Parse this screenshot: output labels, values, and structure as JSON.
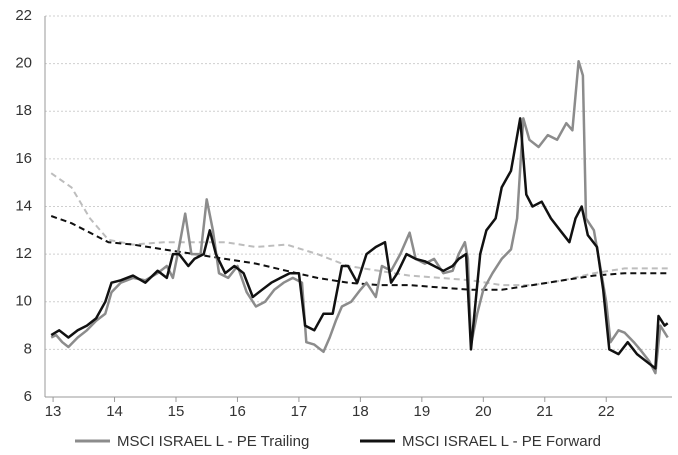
{
  "chart_data": {
    "type": "line",
    "xlim": [
      12.95,
      23.07
    ],
    "xticks": [
      13,
      14,
      15,
      16,
      17,
      18,
      19,
      20,
      21,
      22
    ],
    "ylim": [
      6,
      22
    ],
    "yticks": [
      6,
      8,
      10,
      12,
      14,
      16,
      18,
      20,
      22
    ],
    "grid": true,
    "series": [
      {
        "name": "MSCI ISRAEL L - PE Trailing",
        "color": "#8c8c8c",
        "dash": false,
        "x": [
          12.97,
          13.05,
          13.15,
          13.25,
          13.4,
          13.55,
          13.7,
          13.85,
          13.95,
          14.1,
          14.3,
          14.5,
          14.7,
          14.85,
          14.95,
          15.05,
          15.15,
          15.25,
          15.4,
          15.5,
          15.6,
          15.7,
          15.85,
          16.0,
          16.15,
          16.3,
          16.45,
          16.6,
          16.75,
          16.9,
          17.05,
          17.12,
          17.25,
          17.4,
          17.5,
          17.6,
          17.7,
          17.85,
          18.0,
          18.1,
          18.25,
          18.35,
          18.5,
          18.65,
          18.8,
          18.9,
          19.05,
          19.2,
          19.35,
          19.5,
          19.6,
          19.7,
          19.75,
          19.8,
          19.9,
          20.0,
          20.15,
          20.3,
          20.45,
          20.55,
          20.65,
          20.75,
          20.9,
          21.05,
          21.2,
          21.35,
          21.45,
          21.55,
          21.62,
          21.67,
          21.8,
          21.9,
          22.0,
          22.07,
          22.2,
          22.3,
          22.45,
          22.55,
          22.7,
          22.8,
          22.88,
          23.0
        ],
        "values": [
          8.5,
          8.6,
          8.3,
          8.1,
          8.5,
          8.8,
          9.2,
          9.5,
          10.4,
          10.8,
          11.0,
          10.9,
          11.2,
          11.5,
          11.0,
          12.3,
          13.7,
          12.0,
          12.0,
          14.3,
          13.0,
          11.2,
          11.0,
          11.5,
          10.4,
          9.8,
          10.0,
          10.5,
          10.8,
          11.0,
          10.8,
          8.3,
          8.2,
          7.9,
          8.5,
          9.2,
          9.8,
          10.0,
          10.5,
          10.8,
          10.2,
          11.5,
          11.3,
          12.0,
          12.9,
          11.8,
          11.6,
          11.8,
          11.2,
          11.3,
          12.0,
          12.5,
          11.8,
          8.2,
          9.5,
          10.5,
          11.2,
          11.8,
          12.2,
          13.5,
          17.7,
          16.8,
          16.5,
          17.0,
          16.8,
          17.5,
          17.2,
          20.1,
          19.5,
          13.5,
          13.0,
          11.5,
          10.0,
          8.3,
          8.8,
          8.7,
          8.3,
          8.0,
          7.5,
          7.0,
          9.0,
          8.5
        ]
      },
      {
        "name": "MSCI ISRAEL L - PE Forward",
        "color": "#111111",
        "dash": false,
        "x": [
          12.97,
          13.1,
          13.25,
          13.4,
          13.55,
          13.7,
          13.85,
          13.95,
          14.1,
          14.3,
          14.5,
          14.7,
          14.85,
          14.95,
          15.05,
          15.2,
          15.3,
          15.45,
          15.55,
          15.65,
          15.8,
          15.95,
          16.1,
          16.25,
          16.4,
          16.55,
          16.7,
          16.85,
          17.0,
          17.1,
          17.25,
          17.4,
          17.55,
          17.7,
          17.8,
          17.95,
          18.1,
          18.25,
          18.4,
          18.5,
          18.6,
          18.75,
          18.9,
          19.05,
          19.2,
          19.35,
          19.5,
          19.6,
          19.72,
          19.8,
          19.95,
          20.05,
          20.2,
          20.3,
          20.45,
          20.6,
          20.7,
          20.8,
          20.95,
          21.1,
          21.25,
          21.4,
          21.5,
          21.6,
          21.7,
          21.85,
          21.95,
          22.05,
          22.2,
          22.35,
          22.5,
          22.65,
          22.8,
          22.85,
          22.95,
          23.0
        ],
        "values": [
          8.6,
          8.8,
          8.5,
          8.8,
          9.0,
          9.3,
          10.0,
          10.8,
          10.9,
          11.1,
          10.8,
          11.3,
          11.0,
          12.0,
          12.0,
          11.5,
          11.8,
          12.0,
          13.0,
          12.0,
          11.2,
          11.5,
          11.2,
          10.2,
          10.5,
          10.8,
          11.0,
          11.2,
          11.2,
          9.0,
          8.8,
          9.5,
          9.5,
          11.5,
          11.5,
          10.8,
          12.0,
          12.3,
          12.5,
          10.8,
          11.2,
          12.0,
          11.8,
          11.7,
          11.5,
          11.3,
          11.5,
          11.8,
          12.0,
          8.0,
          12.0,
          13.0,
          13.5,
          14.8,
          15.5,
          17.7,
          14.5,
          14.0,
          14.2,
          13.5,
          13.0,
          12.5,
          13.5,
          14.0,
          12.8,
          12.3,
          10.5,
          8.0,
          7.8,
          8.3,
          7.8,
          7.5,
          7.2,
          9.4,
          9.0,
          9.1
        ]
      },
      {
        "color": "#bdbdbd",
        "dash": true,
        "x": [
          12.97,
          13.3,
          13.6,
          13.9,
          14.3,
          14.8,
          15.3,
          15.8,
          16.3,
          16.8,
          17.3,
          17.8,
          18.3,
          18.8,
          19.3,
          19.8,
          20.3,
          20.8,
          21.3,
          21.8,
          22.3,
          22.8,
          23.0
        ],
        "values": [
          15.4,
          14.8,
          13.5,
          12.6,
          12.4,
          12.5,
          12.5,
          12.5,
          12.3,
          12.4,
          12.0,
          11.5,
          11.3,
          11.1,
          11.0,
          10.9,
          10.7,
          10.7,
          10.9,
          11.2,
          11.4,
          11.4,
          11.4
        ]
      },
      {
        "color": "#111111",
        "dash": true,
        "x": [
          12.97,
          13.3,
          13.6,
          13.9,
          14.3,
          14.8,
          15.3,
          15.8,
          16.3,
          16.8,
          17.3,
          17.8,
          18.3,
          18.8,
          19.3,
          19.8,
          20.3,
          20.8,
          21.3,
          21.8,
          22.3,
          22.8,
          23.0
        ],
        "values": [
          13.6,
          13.3,
          12.9,
          12.5,
          12.4,
          12.2,
          12.0,
          11.8,
          11.6,
          11.3,
          11.0,
          10.8,
          10.7,
          10.7,
          10.6,
          10.5,
          10.5,
          10.7,
          10.9,
          11.1,
          11.2,
          11.2,
          11.2
        ]
      }
    ]
  }
}
